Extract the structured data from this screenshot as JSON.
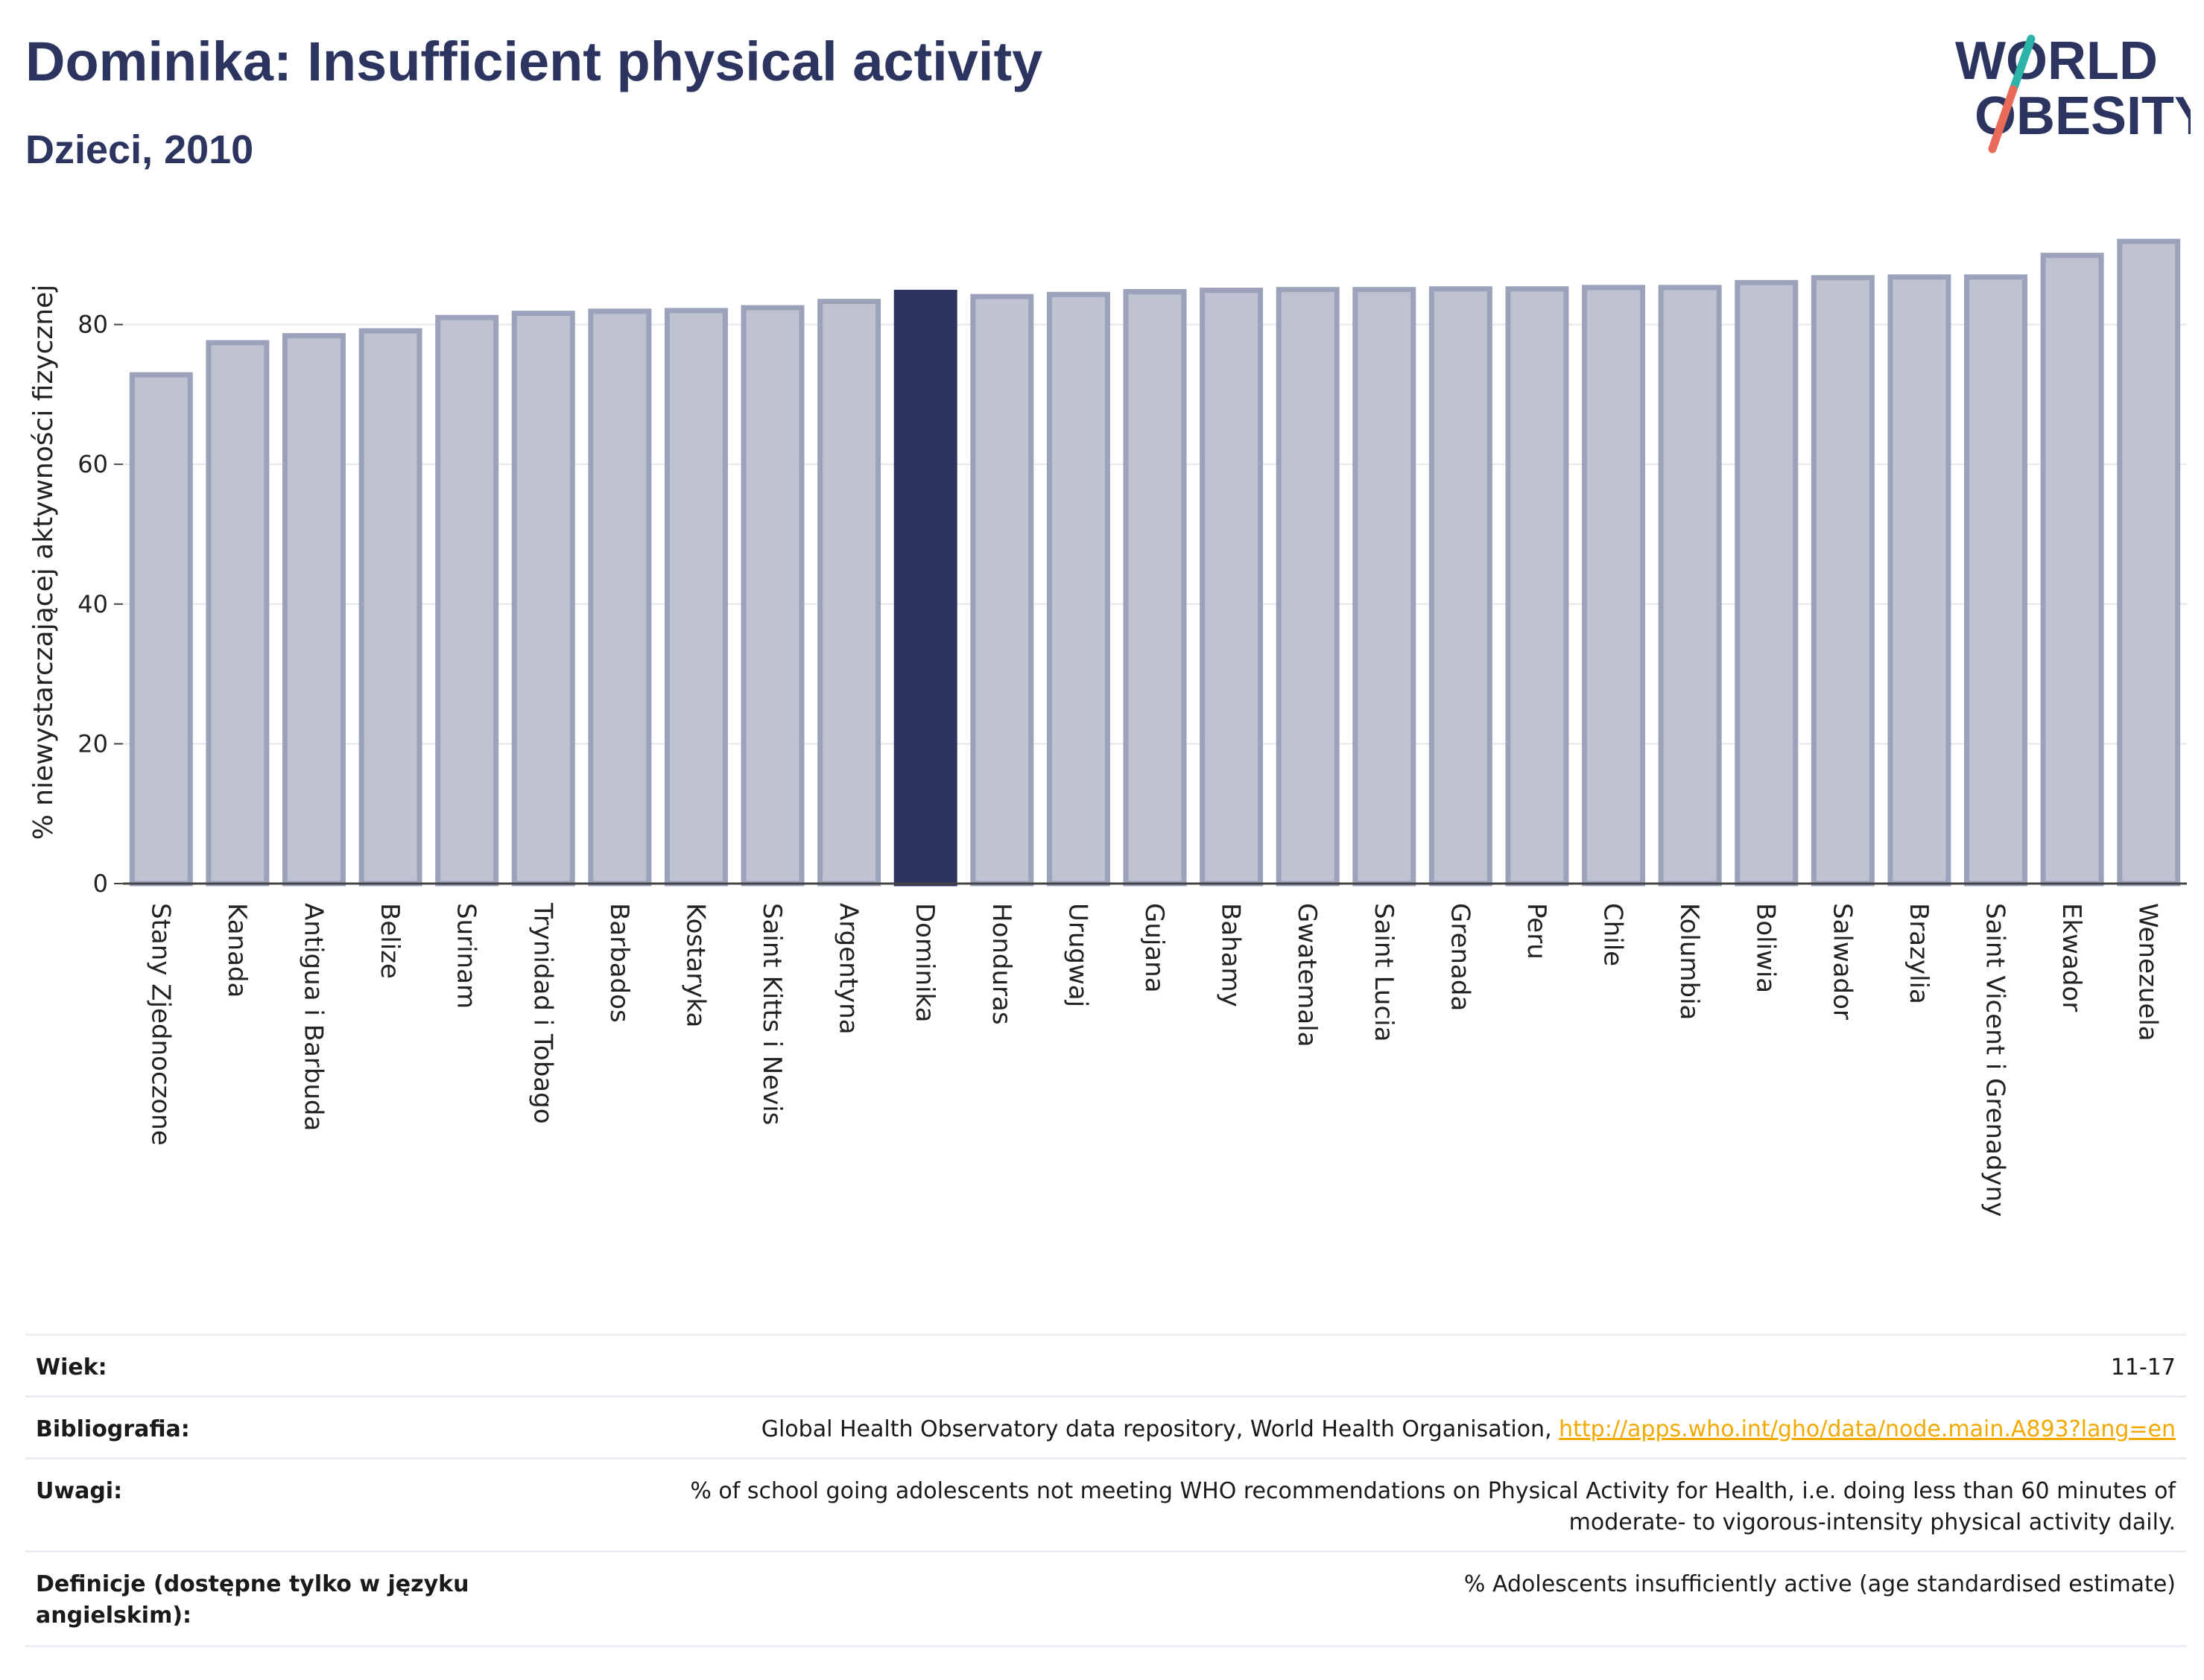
{
  "header": {
    "title": "Dominika: Insufficient physical activity",
    "subtitle": "Dzieci, 2010"
  },
  "logo": {
    "line1": "WORLD",
    "line2": "OBESITY",
    "colors": {
      "text": "#2b3560",
      "slash_top": "#2bb3a8",
      "slash_bottom": "#ea6a5a"
    }
  },
  "chart_data": {
    "type": "bar",
    "ylabel": "% niewystarczającej aktywności fizycznej",
    "xlabel": "",
    "ylim": [
      0,
      93
    ],
    "yticks": [
      0,
      20,
      40,
      60,
      80
    ],
    "grid": true,
    "highlight": "Dominika",
    "categories": [
      "Stany Zjednoczone",
      "Kanada",
      "Antigua i Barbuda",
      "Belize",
      "Surinam",
      "Trynidad i Tobago",
      "Barbados",
      "Kostaryka",
      "Saint Kitts i Nevis",
      "Argentyna",
      "Dominika",
      "Honduras",
      "Urugwaj",
      "Gujana",
      "Bahamy",
      "Gwatemala",
      "Saint Lucia",
      "Grenada",
      "Peru",
      "Chile",
      "Kolumbia",
      "Boliwia",
      "Salwador",
      "Brazylia",
      "Saint Vicent i Grenadyny",
      "Ekwador",
      "Wenezuela"
    ],
    "values": [
      72.8,
      77.4,
      78.4,
      79.1,
      81.0,
      81.6,
      81.9,
      82.0,
      82.4,
      83.3,
      84.6,
      84.0,
      84.3,
      84.7,
      84.9,
      85.0,
      85.0,
      85.1,
      85.1,
      85.3,
      85.3,
      86.0,
      86.7,
      86.8,
      86.8,
      89.9,
      91.9
    ],
    "colors": {
      "bar_fill": "#bfc2d0",
      "bar_stroke": "#9da2bb",
      "highlight": "#2b3560",
      "axis": "#444444",
      "grid": "#e6e6ee"
    }
  },
  "info": {
    "rows": [
      {
        "label": "Wiek:",
        "value": "11-17"
      },
      {
        "label": "Bibliografia:",
        "value": "Global Health Observatory data repository, World Health Organisation, ",
        "link": "http://apps.who.int/gho/data/node.main.A893?lang=en"
      },
      {
        "label": "Uwagi:",
        "value": "% of school going adolescents not meeting WHO recommendations on Physical Activity for Health, i.e. doing less than 60 minutes of moderate- to vigorous-intensity physical activity daily."
      },
      {
        "label": "Definicje (dostępne tylko w języku angielskim):",
        "value": "% Adolescents insufficiently active (age standardised estimate)"
      }
    ]
  }
}
